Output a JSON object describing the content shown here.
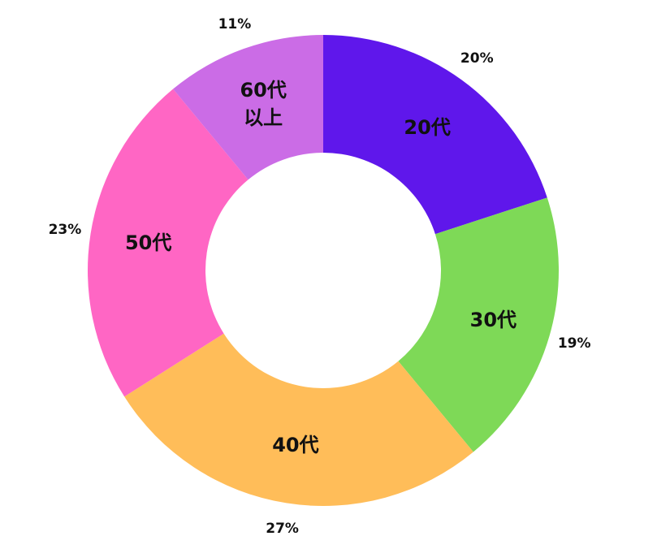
{
  "chart_data": {
    "type": "donut",
    "categories": [
      "20代",
      "30代",
      "40代",
      "50代",
      "60代\n以上"
    ],
    "values": [
      20,
      19,
      27,
      23,
      11
    ],
    "value_labels": [
      "20%",
      "19%",
      "27%",
      "23%",
      "11%"
    ],
    "colors": [
      "#5f17eb",
      "#7ed957",
      "#ffbd59",
      "#ff66c4",
      "#cb6ce6"
    ]
  }
}
